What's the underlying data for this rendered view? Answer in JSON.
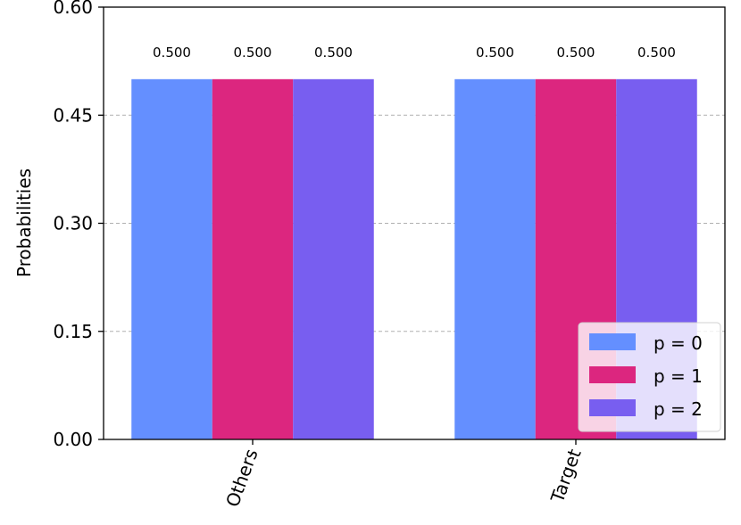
{
  "chart_data": {
    "type": "bar",
    "categories": [
      "Others",
      "Target"
    ],
    "series": [
      {
        "name": "p = 0",
        "values": [
          0.5,
          0.5
        ],
        "labels": [
          "0.500",
          "0.500"
        ],
        "color": "#648fff"
      },
      {
        "name": "p = 1",
        "values": [
          0.5,
          0.5
        ],
        "labels": [
          "0.500",
          "0.500"
        ],
        "color": "#dc267f"
      },
      {
        "name": "p = 2",
        "values": [
          0.5,
          0.5
        ],
        "labels": [
          "0.500",
          "0.500"
        ],
        "color": "#785ef0"
      }
    ],
    "ylabel": "Probabilities",
    "ylim": [
      0,
      0.6
    ],
    "yticks": [
      0.0,
      0.15,
      0.3,
      0.45,
      0.6
    ],
    "ytick_labels": [
      "0.00",
      "0.15",
      "0.30",
      "0.45",
      "0.60"
    ],
    "grid": "horizontal dashed",
    "legend_position": "bottom-right"
  }
}
